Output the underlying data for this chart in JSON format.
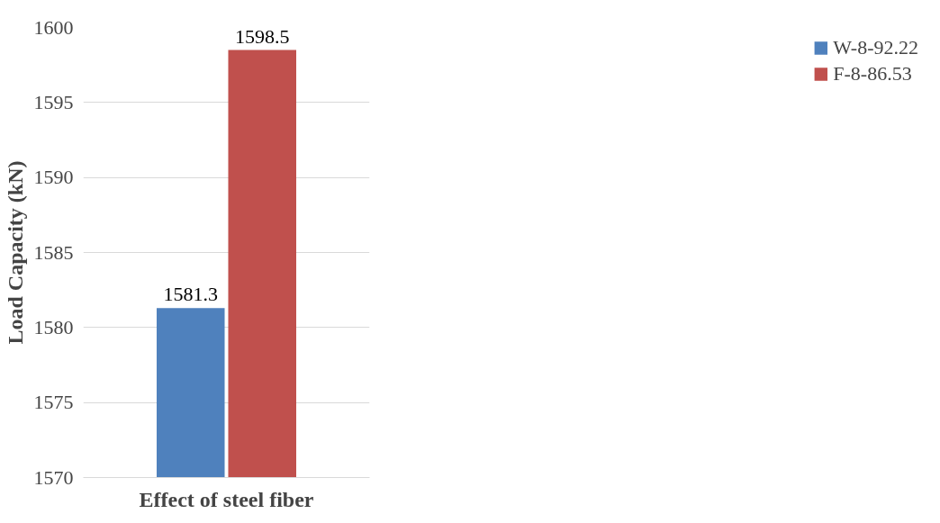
{
  "chart_data": {
    "type": "bar",
    "ylabel": "Load Capacity (kN)",
    "categories": [
      "Effect of steel fiber"
    ],
    "series": [
      {
        "name": "W-8-92.22",
        "color": "#4f81bd",
        "values": [
          1581.3
        ]
      },
      {
        "name": "F-8-86.53",
        "color": "#c0504d",
        "values": [
          1598.5
        ]
      }
    ],
    "ylim": [
      1570,
      1600
    ],
    "yticks": [
      1570,
      1575,
      1580,
      1585,
      1590,
      1595,
      1600
    ],
    "grid": "y",
    "legend": "right",
    "data_labels": true
  }
}
